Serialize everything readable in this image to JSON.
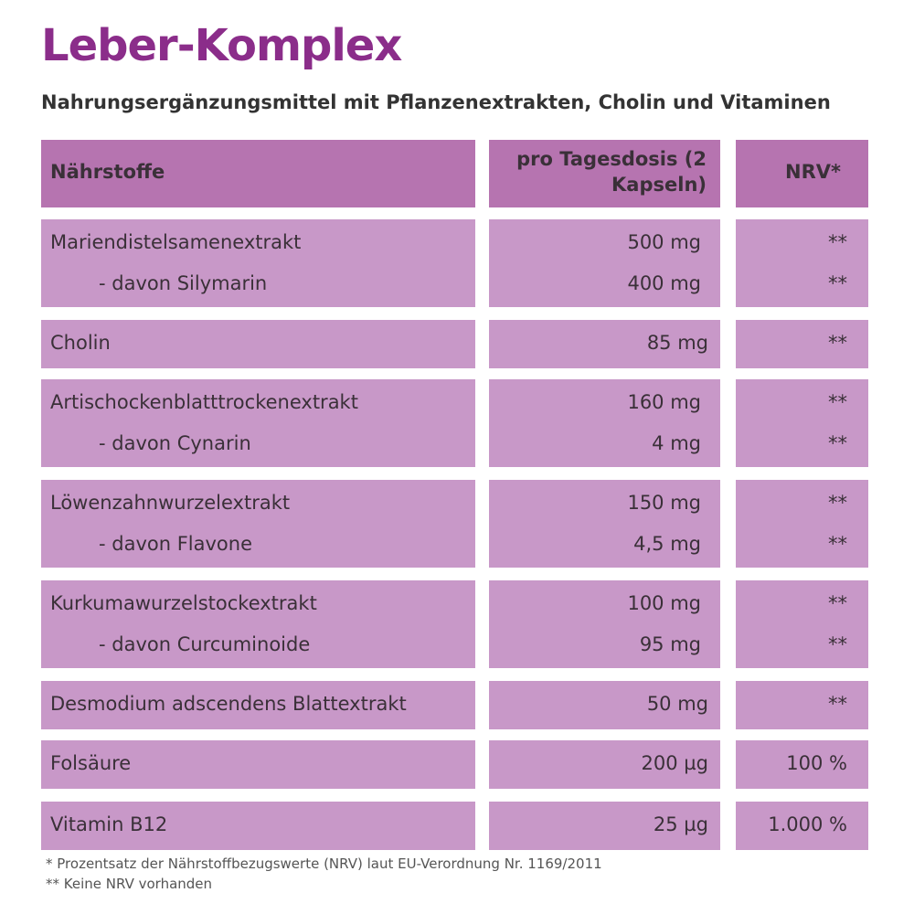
{
  "header": {
    "title": "Leber-Komplex",
    "subtitle": "Nahrungsergänzungsmittel mit Pflanzenextrakten, Cholin und Vitaminen"
  },
  "table": {
    "columns": [
      "Nährstoffe",
      "pro Tagesdosis (2 Kapseln)",
      "NRV*"
    ],
    "groups": [
      {
        "rows": [
          [
            "Mariendistelsamenextrakt",
            "500 mg",
            "**"
          ],
          [
            "- davon Silymarin",
            "400 mg",
            "**"
          ]
        ]
      },
      {
        "rows": [
          [
            "Cholin",
            "85 mg",
            "**"
          ]
        ]
      },
      {
        "rows": [
          [
            "Artischockenblatttrockenextrakt",
            "160 mg",
            "**"
          ],
          [
            "- davon Cynarin",
            "4 mg",
            "**"
          ]
        ]
      },
      {
        "rows": [
          [
            "Löwenzahnwurzelextrakt",
            "150 mg",
            "**"
          ],
          [
            "- davon Flavone",
            "4,5 mg",
            "**"
          ]
        ]
      },
      {
        "rows": [
          [
            "Kurkumawurzelstockextrakt",
            "100 mg",
            "**"
          ],
          [
            "- davon Curcuminoide",
            "95 mg",
            "**"
          ]
        ]
      },
      {
        "rows": [
          [
            "Desmodium adscendens Blattextrakt",
            "50 mg",
            "**"
          ]
        ]
      },
      {
        "rows": [
          [
            "Folsäure",
            "200 µg",
            "100 %"
          ]
        ]
      },
      {
        "rows": [
          [
            "Vitamin B12",
            "25 µg",
            "1.000 %"
          ]
        ]
      }
    ]
  },
  "footnotes": [
    "* Prozentsatz der Nährstoffbezugswerte (NRV) laut EU-Verordnung Nr. 1169/2011",
    "** Keine NRV vorhanden"
  ]
}
